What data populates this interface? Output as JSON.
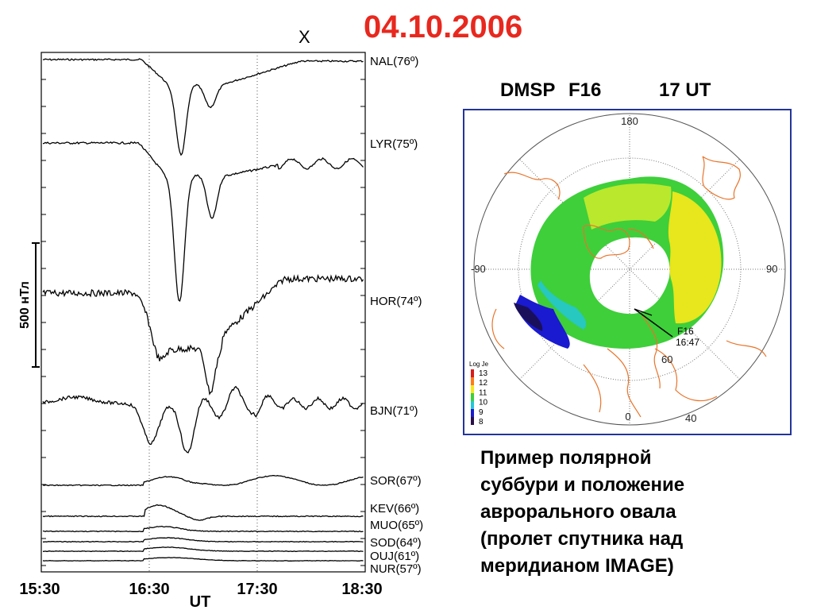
{
  "header": {
    "date": "04.10.2006",
    "x_mark": "X"
  },
  "chart_data": {
    "type": "line",
    "title": "",
    "xlabel": "UT",
    "x_ticks": [
      "15:30",
      "16:30",
      "17:30",
      "18:30"
    ],
    "x_range_ut": [
      "15:30",
      "18:30"
    ],
    "dotted_vertical_lines_ut": [
      "16:30",
      "17:30"
    ],
    "scale_bar_label": "500 нТл",
    "scale_bar_value_nT": 500,
    "series": [
      {
        "station": "NAL",
        "lat_label": "(76º)"
      },
      {
        "station": "LYR",
        "lat_label": "(75º)"
      },
      {
        "station": "HOR",
        "lat_label": "(74º)"
      },
      {
        "station": "BJN",
        "lat_label": "(71º)"
      },
      {
        "station": "SOR",
        "lat_label": "(67º)"
      },
      {
        "station": "KEV",
        "lat_label": "(66º)"
      },
      {
        "station": "MUO",
        "lat_label": "(65º)"
      },
      {
        "station": "SOD",
        "lat_label": "(64º)"
      },
      {
        "station": "OUJ",
        "lat_label": "(61º)"
      },
      {
        "station": "NUR",
        "lat_label": "(57º)"
      }
    ]
  },
  "oval_panel": {
    "satellite": "DMSP",
    "satellite_number": "F16",
    "time": "17 UT",
    "axis_labels": {
      "top": "180",
      "left": "-90",
      "right": "90",
      "bottom": "0"
    },
    "lat_labels": [
      "60",
      "40"
    ],
    "track_label_satellite": "F16",
    "track_label_time": "16:47",
    "colorbar": {
      "title": "Log Je",
      "ticks": [
        "13",
        "12",
        "11",
        "10",
        "9",
        "8"
      ]
    },
    "colors": {
      "frame": "#23349a",
      "coastline": "#e8742a",
      "green": "#3ecf3a",
      "yellow": "#f6e81a",
      "blue": "#1a1ad0"
    }
  },
  "caption": {
    "lines": [
      "Пример полярной",
      "суббури и положение",
      "аврорального овала",
      "(пролет спутника над",
      "меридианом IMAGE)"
    ]
  }
}
